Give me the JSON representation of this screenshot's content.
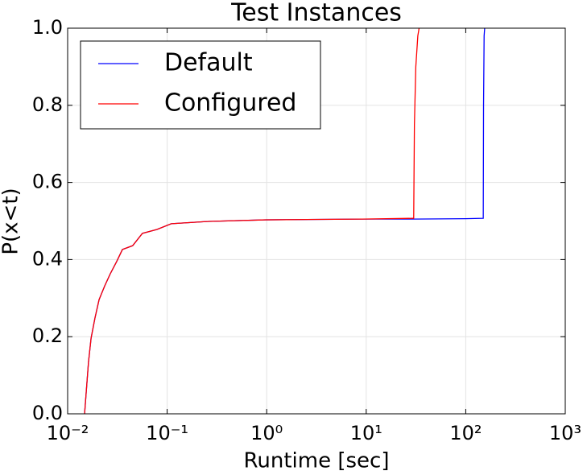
{
  "chart_data": {
    "type": "line",
    "title": "Test Instances",
    "x_label": "Runtime [sec]",
    "y_label": "P(x<t)",
    "xscale": "log",
    "xlim": [
      0.01,
      1000
    ],
    "xticks": [
      {
        "value": 0.01,
        "label": "10⁻²"
      },
      {
        "value": 0.1,
        "label": "10⁻¹"
      },
      {
        "value": 1,
        "label": "10⁰"
      },
      {
        "value": 10,
        "label": "10¹"
      },
      {
        "value": 100,
        "label": "10²"
      },
      {
        "value": 1000,
        "label": "10³"
      }
    ],
    "ylim": [
      0,
      1
    ],
    "yticks": [
      {
        "value": 0,
        "label": "0.0"
      },
      0.2,
      0.4,
      0.6,
      0.8,
      {
        "value": 1,
        "label": "1.0"
      }
    ],
    "grid": true,
    "legend": "upper left",
    "series": [
      {
        "name": "Default",
        "color": "#0000ff",
        "x": [
          0.0148,
          0.0162,
          0.0172,
          0.0188,
          0.0207,
          0.0236,
          0.0268,
          0.0311,
          0.0355,
          0.045,
          0.0564,
          0.079,
          0.11,
          0.265,
          0.98,
          9.2,
          29.6,
          100,
          150,
          151,
          153,
          155
        ],
        "values": [
          0,
          0.134,
          0.196,
          0.248,
          0.296,
          0.332,
          0.363,
          0.395,
          0.426,
          0.436,
          0.468,
          0.478,
          0.493,
          0.499,
          0.503,
          0.505,
          0.505,
          0.506,
          0.507,
          0.8,
          0.98,
          1.0
        ]
      },
      {
        "name": "Configured",
        "color": "#ff0000",
        "x": [
          0.0148,
          0.0162,
          0.0172,
          0.0188,
          0.0207,
          0.0236,
          0.0268,
          0.0311,
          0.0355,
          0.045,
          0.0564,
          0.079,
          0.11,
          0.265,
          0.98,
          9.2,
          29.6,
          30,
          30.5,
          31.5,
          33,
          34
        ],
        "values": [
          0,
          0.134,
          0.196,
          0.248,
          0.296,
          0.332,
          0.363,
          0.395,
          0.426,
          0.436,
          0.468,
          0.478,
          0.493,
          0.499,
          0.503,
          0.505,
          0.507,
          0.507,
          0.75,
          0.9,
          0.98,
          1.0
        ]
      }
    ]
  }
}
